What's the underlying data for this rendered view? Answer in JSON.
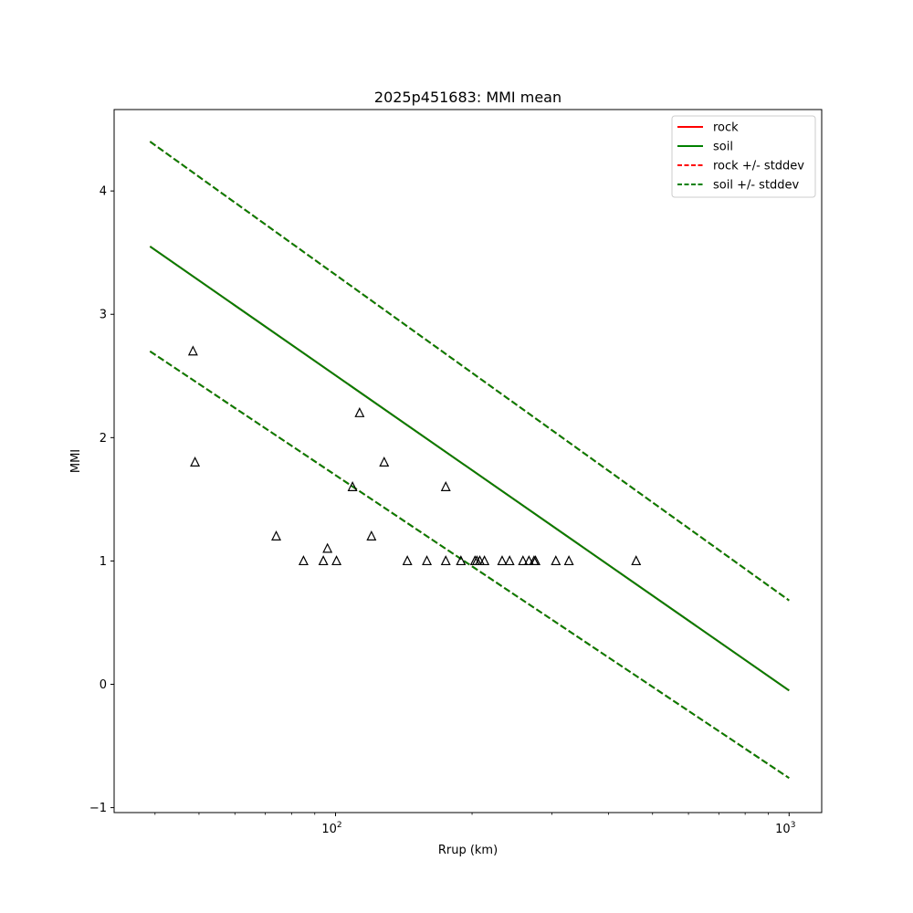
{
  "chart_data": {
    "type": "scatter",
    "title": "2025p451683: MMI mean",
    "xlabel": "Rrup (km)",
    "ylabel": "MMI",
    "x_scale": "log",
    "xlim": [
      32.5,
      1180
    ],
    "ylim": [
      -1.04,
      4.66
    ],
    "x_ticks": [
      {
        "value": 100,
        "base": "10",
        "exp": "2"
      },
      {
        "value": 1000,
        "base": "10",
        "exp": "3"
      }
    ],
    "y_ticks": [
      {
        "value": -1,
        "label": "−1"
      },
      {
        "value": 0,
        "label": "0"
      },
      {
        "value": 1,
        "label": "1"
      },
      {
        "value": 2,
        "label": "2"
      },
      {
        "value": 3,
        "label": "3"
      },
      {
        "value": 4,
        "label": "4"
      }
    ],
    "grid": false,
    "legend_position": "top-right",
    "series": [
      {
        "name": "rock",
        "kind": "line",
        "style": "solid",
        "color": "#ff0000",
        "points": [
          [
            39,
            3.55
          ],
          [
            1000,
            -0.05
          ]
        ]
      },
      {
        "name": "soil",
        "kind": "line",
        "style": "solid",
        "color": "#008000",
        "points": [
          [
            39,
            3.55
          ],
          [
            1000,
            -0.05
          ]
        ]
      },
      {
        "name": "rock +/- stddev",
        "kind": "line",
        "style": "dashed",
        "color": "#ff0000",
        "bands": [
          [
            [
              39,
              4.4
            ],
            [
              1000,
              0.68
            ]
          ],
          [
            [
              39,
              2.7
            ],
            [
              1000,
              -0.76
            ]
          ]
        ]
      },
      {
        "name": "soil +/- stddev",
        "kind": "line",
        "style": "dashed",
        "color": "#008000",
        "bands": [
          [
            [
              39,
              4.4
            ],
            [
              1000,
              0.68
            ]
          ],
          [
            [
              39,
              2.7
            ],
            [
              1000,
              -0.76
            ]
          ]
        ]
      }
    ],
    "observations": {
      "marker": "triangle",
      "color": "#000000",
      "points": [
        [
          48.5,
          2.7
        ],
        [
          49,
          1.8
        ],
        [
          74,
          1.2
        ],
        [
          85,
          1.0
        ],
        [
          94,
          1.0
        ],
        [
          96,
          1.1
        ],
        [
          100.5,
          1.0
        ],
        [
          109,
          1.6
        ],
        [
          113,
          2.2
        ],
        [
          120,
          1.2
        ],
        [
          128,
          1.8
        ],
        [
          144,
          1.0
        ],
        [
          159,
          1.0
        ],
        [
          175,
          1.6
        ],
        [
          175,
          1.0
        ],
        [
          189,
          1.0
        ],
        [
          203,
          1.0
        ],
        [
          205,
          1.0
        ],
        [
          208,
          1.0
        ],
        [
          213,
          1.0
        ],
        [
          233,
          1.0
        ],
        [
          242,
          1.0
        ],
        [
          259,
          1.0
        ],
        [
          267,
          1.0
        ],
        [
          274,
          1.0
        ],
        [
          276,
          1.0
        ],
        [
          306,
          1.0
        ],
        [
          327,
          1.0
        ],
        [
          460,
          1.0
        ]
      ]
    }
  }
}
